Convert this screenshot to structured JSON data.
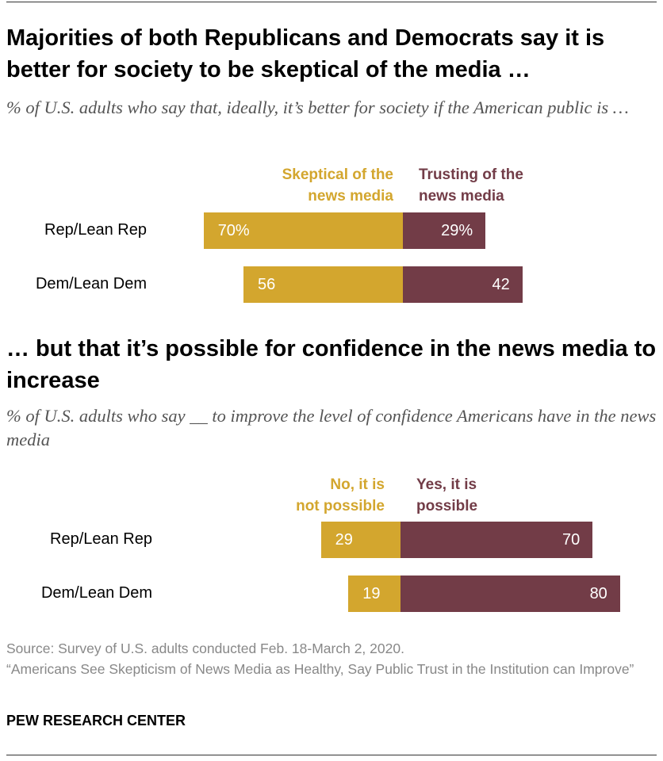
{
  "colors": {
    "skeptical": "#D3A62E",
    "trusting": "#723C47"
  },
  "chart_data": [
    {
      "type": "bar",
      "orientation": "horizontal-diverging-stacked",
      "title": "Majorities of both Republicans and Democrats say it is better for society to be skeptical of the media …",
      "subtitle": "% of U.S. adults who say that, ideally, it’s better for society if the American public is …",
      "categories": [
        "Rep/Lean Rep",
        "Dem/Lean Dem"
      ],
      "series": [
        {
          "name": "Skeptical of the news media",
          "values": [
            70,
            56
          ],
          "labels": [
            "70%",
            "56"
          ]
        },
        {
          "name": "Trusting of the news media",
          "values": [
            29,
            42
          ],
          "labels": [
            "29%",
            "42"
          ]
        }
      ]
    },
    {
      "type": "bar",
      "orientation": "horizontal-diverging-stacked",
      "title": "… but that it’s possible for confidence in the news media to increase",
      "subtitle": "% of U.S. adults who say __ to improve the level of confidence Americans have in the news media",
      "categories": [
        "Rep/Lean Rep",
        "Dem/Lean Dem"
      ],
      "series": [
        {
          "name": "No, it is not possible",
          "values": [
            29,
            19
          ],
          "labels": [
            "29",
            "19"
          ]
        },
        {
          "name": "Yes, it is possible",
          "values": [
            70,
            80
          ],
          "labels": [
            "70",
            "80"
          ]
        }
      ]
    }
  ],
  "legend1": {
    "left_l1": "Skeptical of the",
    "left_l2": "news media",
    "right_l1": "Trusting of the",
    "right_l2": "news media"
  },
  "legend2": {
    "left_l1": "No, it is",
    "left_l2": "not possible",
    "right_l1": "Yes, it is",
    "right_l2": "possible"
  },
  "footer": {
    "source": "Source: Survey of U.S. adults conducted Feb. 18-March 2, 2020.",
    "report": "“Americans See Skepticism of News Media as Healthy, Say Public Trust in the Institution can Improve”",
    "org": "PEW RESEARCH CENTER"
  }
}
